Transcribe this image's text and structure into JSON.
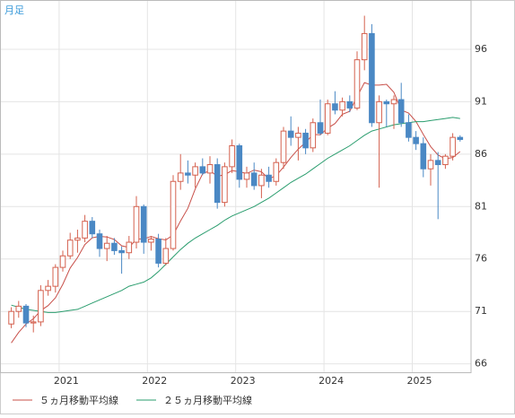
{
  "chart_data": {
    "type": "candlestick",
    "title": "月足",
    "categories": [
      null,
      null,
      null,
      null,
      null,
      null,
      null,
      "2021",
      null,
      null,
      null,
      null,
      null,
      null,
      null,
      null,
      null,
      null,
      null,
      "2022",
      null,
      null,
      null,
      null,
      null,
      null,
      null,
      null,
      null,
      null,
      null,
      "2023",
      null,
      null,
      null,
      null,
      null,
      null,
      null,
      null,
      null,
      null,
      null,
      "2024",
      null,
      null,
      null,
      null,
      null,
      null,
      null,
      null,
      null,
      null,
      null,
      "2025",
      null,
      null,
      null,
      null,
      null,
      null
    ],
    "open": [
      69.8,
      71.0,
      71.5,
      69.9,
      70.0,
      73.0,
      73.4,
      75.2,
      76.3,
      77.8,
      78.0,
      79.6,
      78.4,
      77.0,
      77.5,
      76.8,
      76.6,
      77.6,
      81.0,
      77.6,
      77.9,
      75.6,
      77.0,
      83.4,
      84.2,
      84.0,
      84.8,
      84.2,
      85.0,
      81.4,
      84.8,
      86.8,
      83.6,
      84.2,
      83.0,
      84.0,
      83.4,
      85.2,
      88.2,
      87.6,
      88.0,
      86.6,
      89.0,
      88.0,
      90.8,
      90.2,
      91.0,
      90.4,
      95.0,
      97.5,
      89.0,
      91.0,
      90.8,
      91.2,
      89.0,
      87.6,
      87.0,
      84.6,
      85.4,
      85.0,
      85.8,
      87.6
    ],
    "high": [
      71.4,
      72.0,
      71.7,
      70.6,
      73.5,
      74.0,
      75.5,
      76.8,
      78.5,
      78.8,
      80.2,
      80.0,
      78.8,
      78.2,
      78.0,
      77.2,
      78.2,
      82.0,
      81.2,
      78.2,
      78.4,
      78.0,
      84.0,
      86.0,
      85.4,
      85.2,
      85.6,
      85.8,
      85.6,
      85.2,
      87.4,
      87.0,
      84.8,
      85.2,
      84.6,
      84.8,
      85.6,
      88.6,
      89.6,
      88.6,
      88.4,
      89.4,
      91.2,
      91.2,
      92.0,
      91.4,
      91.6,
      95.8,
      99.2,
      98.4,
      91.6,
      91.2,
      91.6,
      92.8,
      89.8,
      88.2,
      87.6,
      86.0,
      86.2,
      86.0,
      88.0,
      87.8
    ],
    "low": [
      69.4,
      70.4,
      69.5,
      69.0,
      69.6,
      72.5,
      72.8,
      74.8,
      76.0,
      76.6,
      77.6,
      78.0,
      76.2,
      75.8,
      76.4,
      74.6,
      76.0,
      77.0,
      76.5,
      76.8,
      75.2,
      75.4,
      76.8,
      82.6,
      83.2,
      82.8,
      84.0,
      83.2,
      80.8,
      81.0,
      84.2,
      82.8,
      82.8,
      82.6,
      81.8,
      82.8,
      83.0,
      84.6,
      86.8,
      85.4,
      86.0,
      86.2,
      87.8,
      87.8,
      89.8,
      89.6,
      90.0,
      90.2,
      94.0,
      88.6,
      82.8,
      88.6,
      88.4,
      88.6,
      87.2,
      86.4,
      83.8,
      83.0,
      79.8,
      84.6,
      85.4,
      87.2
    ],
    "close": [
      71.0,
      71.5,
      69.9,
      70.0,
      73.0,
      73.4,
      75.2,
      76.3,
      77.8,
      78.0,
      79.6,
      78.4,
      77.0,
      77.5,
      76.8,
      76.6,
      77.6,
      81.0,
      77.6,
      77.9,
      75.6,
      77.0,
      83.4,
      84.2,
      84.0,
      84.8,
      84.2,
      85.0,
      81.4,
      84.8,
      86.8,
      83.6,
      84.2,
      83.0,
      84.0,
      83.4,
      85.2,
      88.2,
      87.6,
      88.0,
      86.6,
      89.0,
      88.0,
      90.8,
      90.2,
      91.0,
      90.4,
      95.0,
      97.5,
      89.0,
      91.0,
      90.8,
      91.2,
      89.0,
      87.6,
      87.0,
      84.6,
      85.4,
      85.0,
      85.8,
      87.6,
      87.4
    ],
    "up_color": "#d4604e",
    "down_color": "#4a88c4",
    "series": [
      {
        "name": "５ヵ月移動平均線",
        "color": "#c8504a",
        "values": [
          68.0,
          69.0,
          69.8,
          70.3,
          71.08,
          71.56,
          72.3,
          73.58,
          75.14,
          76.14,
          77.38,
          78.02,
          78.16,
          78.1,
          77.86,
          77.26,
          77.1,
          77.9,
          77.92,
          78.14,
          77.94,
          77.82,
          78.3,
          79.62,
          80.84,
          82.68,
          84.12,
          84.44,
          83.88,
          84.04,
          84.44,
          84.32,
          84.16,
          84.48,
          84.32,
          83.64,
          83.96,
          84.76,
          85.68,
          86.48,
          87.12,
          87.88,
          87.84,
          88.48,
          88.92,
          89.8,
          90.08,
          91.48,
          92.82,
          92.58,
          92.58,
          92.66,
          91.9,
          90.2,
          89.92,
          89.12,
          87.88,
          86.72,
          85.92,
          85.56,
          85.68,
          86.24
        ]
      },
      {
        "name": "２５ヵ月移動平均線",
        "color": "#2a9d6e",
        "values": [
          71.6,
          71.4,
          71.2,
          71.1,
          71.0,
          70.9,
          70.9,
          71.0,
          71.1,
          71.2,
          71.5,
          71.8,
          72.1,
          72.4,
          72.7,
          73.0,
          73.4,
          73.6,
          73.8,
          74.2,
          74.8,
          75.5,
          76.2,
          76.9,
          77.5,
          78.0,
          78.4,
          78.8,
          79.2,
          79.7,
          80.1,
          80.4,
          80.7,
          81.0,
          81.4,
          81.8,
          82.3,
          82.8,
          83.3,
          83.7,
          84.1,
          84.6,
          85.1,
          85.6,
          86.0,
          86.4,
          86.8,
          87.3,
          87.8,
          88.2,
          88.4,
          88.6,
          88.8,
          88.9,
          89.0,
          89.1,
          89.1,
          89.2,
          89.3,
          89.4,
          89.5,
          89.4
        ]
      }
    ],
    "ylim": [
      65.2,
      100.7
    ],
    "yticks": [
      66,
      71,
      76,
      81,
      86,
      91,
      96
    ],
    "grid": true
  }
}
